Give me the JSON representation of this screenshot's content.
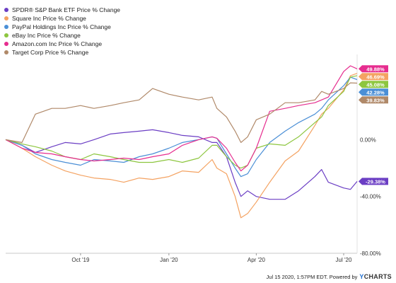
{
  "chart_data": {
    "type": "line",
    "title": "",
    "xlabel": "",
    "ylabel": "",
    "x_ticks": [
      "Oct '19",
      "Jan '20",
      "Apr '20",
      "Jul '20"
    ],
    "y_ticks": [
      "0.00%",
      "-40.00%",
      "-80.00%"
    ],
    "y_tick_values": [
      0,
      -40,
      -80
    ],
    "ylim": [
      -80,
      55
    ],
    "legend_position": "top-left",
    "grid": false,
    "x_dates": [
      "2019-07-15",
      "2019-08-01",
      "2019-08-15",
      "2019-09-01",
      "2019-09-15",
      "2019-10-01",
      "2019-10-15",
      "2019-11-01",
      "2019-11-15",
      "2019-12-01",
      "2019-12-15",
      "2020-01-01",
      "2020-01-15",
      "2020-02-01",
      "2020-02-15",
      "2020-02-20",
      "2020-03-01",
      "2020-03-10",
      "2020-03-16",
      "2020-03-23",
      "2020-04-01",
      "2020-04-15",
      "2020-05-01",
      "2020-05-15",
      "2020-06-01",
      "2020-06-08",
      "2020-06-15",
      "2020-07-01",
      "2020-07-08",
      "2020-07-15"
    ],
    "series": [
      {
        "name": "SPDR® S&P Bank ETF Price % Change",
        "color": "#6b3ec4",
        "end_label": "-29.38%",
        "values": [
          0,
          -4,
          -9,
          -5,
          -2,
          -3,
          0,
          4,
          5,
          6,
          7,
          5,
          3,
          2,
          -2,
          -2,
          -12,
          -30,
          -40,
          -36,
          -40,
          -42,
          -42,
          -36,
          -26,
          -21,
          -30,
          -34,
          -35,
          -29.38
        ]
      },
      {
        "name": "Square Inc Price % Change",
        "color": "#f4a261",
        "end_label": "46.69%",
        "values": [
          0,
          -6,
          -12,
          -18,
          -22,
          -25,
          -27,
          -28,
          -30,
          -27,
          -28,
          -26,
          -22,
          -23,
          -14,
          -20,
          -24,
          -40,
          -55,
          -52,
          -44,
          -30,
          -15,
          -8,
          10,
          18,
          22,
          35,
          45,
          46.69
        ]
      },
      {
        "name": "PayPal Holdings Inc Price % Change",
        "color": "#4b8fd6",
        "end_label": "42.28%",
        "values": [
          0,
          -4,
          -10,
          -14,
          -16,
          -18,
          -14,
          -15,
          -16,
          -12,
          -10,
          -6,
          -2,
          0,
          2,
          1,
          -10,
          -20,
          -26,
          -24,
          -14,
          -2,
          6,
          12,
          18,
          22,
          28,
          38,
          44,
          42.28
        ]
      },
      {
        "name": "eBay Inc Price % Change",
        "color": "#8dc63f",
        "end_label": "45.08%",
        "values": [
          0,
          -3,
          -5,
          -8,
          -12,
          -14,
          -10,
          -12,
          -14,
          -16,
          -16,
          -14,
          -16,
          -13,
          -4,
          -4,
          -12,
          -18,
          -20,
          -18,
          -6,
          -3,
          -4,
          2,
          12,
          16,
          24,
          34,
          44,
          45.08
        ]
      },
      {
        "name": "Amazon.com Inc Price % Change",
        "color": "#e62d8f",
        "end_label": "49.88%",
        "values": [
          0,
          -6,
          -9,
          -10,
          -12,
          -14,
          -15,
          -14,
          -13,
          -14,
          -12,
          -10,
          -4,
          0,
          2,
          1,
          -6,
          -16,
          -22,
          -18,
          -6,
          20,
          22,
          24,
          26,
          28,
          30,
          48,
          52,
          49.88
        ]
      },
      {
        "name": "Target Corp Price % Change",
        "color": "#b08969",
        "end_label": "39.83%",
        "values": [
          0,
          -2,
          18,
          22,
          22,
          24,
          22,
          24,
          26,
          28,
          36,
          32,
          30,
          28,
          30,
          22,
          16,
          6,
          -2,
          2,
          14,
          18,
          26,
          26,
          28,
          34,
          32,
          36,
          40,
          39.83
        ]
      }
    ]
  },
  "footer": {
    "timestamp": "Jul 15 2020, 1:57PM EDT.",
    "powered_by": "Powered by",
    "brand_y": "Y",
    "brand_rest": "CHARTS"
  }
}
